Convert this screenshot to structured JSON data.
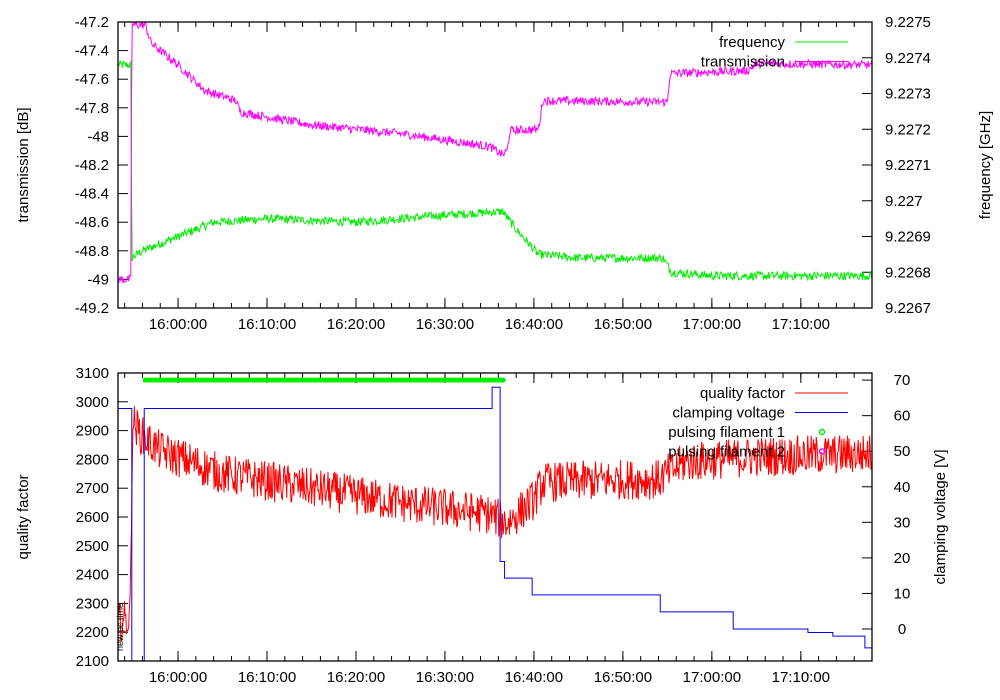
{
  "chart_data": [
    {
      "type": "line",
      "panel": "top",
      "xlabel": "",
      "ylabel": "transmission [dB]",
      "y2label": "frequency [GHz]",
      "x_unit": "minutes after 15:00",
      "xlim": [
        53.25,
        138
      ],
      "ylim": [
        -49.2,
        -47.2
      ],
      "y2lim": [
        9.2267,
        9.2275
      ],
      "x_ticks": [
        60,
        70,
        80,
        90,
        100,
        110,
        120,
        130
      ],
      "x_tick_labels": [
        "16:00:00",
        "16:10:00",
        "16:20:00",
        "16:30:00",
        "16:40:00",
        "16:50:00",
        "17:00:00",
        "17:10:00"
      ],
      "y_ticks": [
        -47.2,
        -47.4,
        -47.6,
        -47.8,
        -48,
        -48.2,
        -48.4,
        -48.6,
        -48.8,
        -49,
        -49.2
      ],
      "y_tick_labels": [
        "-47.2",
        "-47.4",
        "-47.6",
        "-47.8",
        "-48",
        "-48.2",
        "-48.4",
        "-48.6",
        "-48.8",
        "-49",
        "-49.2"
      ],
      "y2_ticks": [
        9.2275,
        9.2274,
        9.2273,
        9.2272,
        9.2271,
        9.227,
        9.2269,
        9.2268,
        9.2267
      ],
      "y2_tick_labels": [
        "9.2275",
        "9.2274",
        "9.2273",
        "9.2272",
        "9.2271",
        "9.227",
        "9.2269",
        "9.2268",
        "9.2267"
      ],
      "legend_position": "top-right",
      "series": [
        {
          "name": "frequency",
          "axis": "y2",
          "color": "#00ee00",
          "noise": 1.2e-05,
          "x": [
            53.25,
            54.7,
            54.8,
            56,
            60,
            64,
            70,
            80,
            90,
            96.5,
            98,
            100.5,
            105,
            114.5,
            115.5,
            120,
            138
          ],
          "y": [
            9.22738,
            9.22738,
            9.22684,
            9.22686,
            9.2269,
            9.22694,
            9.22695,
            9.22694,
            9.22696,
            9.22697,
            9.22692,
            9.22685,
            9.22684,
            9.22684,
            9.2268,
            9.22679,
            9.22679
          ]
        },
        {
          "name": "transmission",
          "axis": "y",
          "color": "#ff00ff",
          "noise": 0.03,
          "x": [
            53.25,
            54.7,
            54.8,
            56.3,
            57,
            60,
            63,
            66.5,
            67,
            75,
            85,
            95,
            96.5,
            97,
            97.3,
            100.5,
            101,
            115,
            115.3,
            124,
            125,
            138
          ],
          "y": [
            -49.0,
            -49.0,
            -47.22,
            -47.22,
            -47.35,
            -47.5,
            -47.68,
            -47.75,
            -47.83,
            -47.92,
            -47.98,
            -48.07,
            -48.13,
            -48.1,
            -47.96,
            -47.95,
            -47.75,
            -47.76,
            -47.56,
            -47.54,
            -47.49,
            -47.5
          ]
        }
      ]
    },
    {
      "type": "line",
      "panel": "bottom",
      "xlabel": "",
      "ylabel": "quality factor",
      "y2label": "clamping voltage [V]",
      "x_unit": "minutes after 15:00",
      "xlim": [
        53.25,
        138
      ],
      "ylim": [
        2100,
        3100
      ],
      "y2lim": [
        -9,
        72
      ],
      "x_ticks": [
        60,
        70,
        80,
        90,
        100,
        110,
        120,
        130
      ],
      "x_tick_labels": [
        "16:00:00",
        "16:10:00",
        "16:20:00",
        "16:30:00",
        "16:40:00",
        "16:50:00",
        "17:00:00",
        "17:10:00"
      ],
      "y_ticks": [
        3100,
        3000,
        2900,
        2800,
        2700,
        2600,
        2500,
        2400,
        2300,
        2200,
        2100
      ],
      "y_tick_labels": [
        "3100",
        "3000",
        "2900",
        "2800",
        "2700",
        "2600",
        "2500",
        "2400",
        "2300",
        "2200",
        "2100"
      ],
      "y2_ticks": [
        70,
        60,
        50,
        40,
        30,
        20,
        10,
        0
      ],
      "y2_tick_labels": [
        "70",
        "60",
        "50",
        "40",
        "30",
        "20",
        "10",
        "0"
      ],
      "legend_position": "top-right",
      "annotation": "new pc time",
      "series": [
        {
          "name": "quality factor",
          "axis": "y",
          "color": "#ff0000",
          "noise": 70,
          "x": [
            53.25,
            54.6,
            54.9,
            56,
            58,
            65,
            75,
            85,
            95,
            97,
            98.5,
            100,
            101,
            110,
            114,
            117,
            125,
            138
          ],
          "y": [
            2230,
            2250,
            2930,
            2880,
            2830,
            2750,
            2700,
            2650,
            2610,
            2580,
            2620,
            2660,
            2720,
            2730,
            2730,
            2790,
            2810,
            2820
          ]
        },
        {
          "name": "clamping voltage",
          "axis": "y2",
          "color": "#0000ff",
          "step": true,
          "x": [
            53.25,
            54.8,
            56.2,
            95.3,
            96.2,
            96.7,
            99.8,
            114.2,
            122.4,
            130.8,
            133.6,
            137.2,
            138
          ],
          "y": [
            62,
            -9,
            62,
            68,
            19,
            14.3,
            9.6,
            4.8,
            0,
            -1,
            -2,
            -5.3,
            -5.3
          ]
        },
        {
          "name": "pulsing filament 1",
          "axis": "y2",
          "color": "#00ee00",
          "points": true,
          "x": [
            56.3,
            96.7
          ],
          "y": [
            70,
            70
          ]
        },
        {
          "name": "pulsing filament 2",
          "axis": "y2",
          "color": "#ff00ff",
          "points": true,
          "x": [],
          "y": []
        }
      ]
    }
  ]
}
